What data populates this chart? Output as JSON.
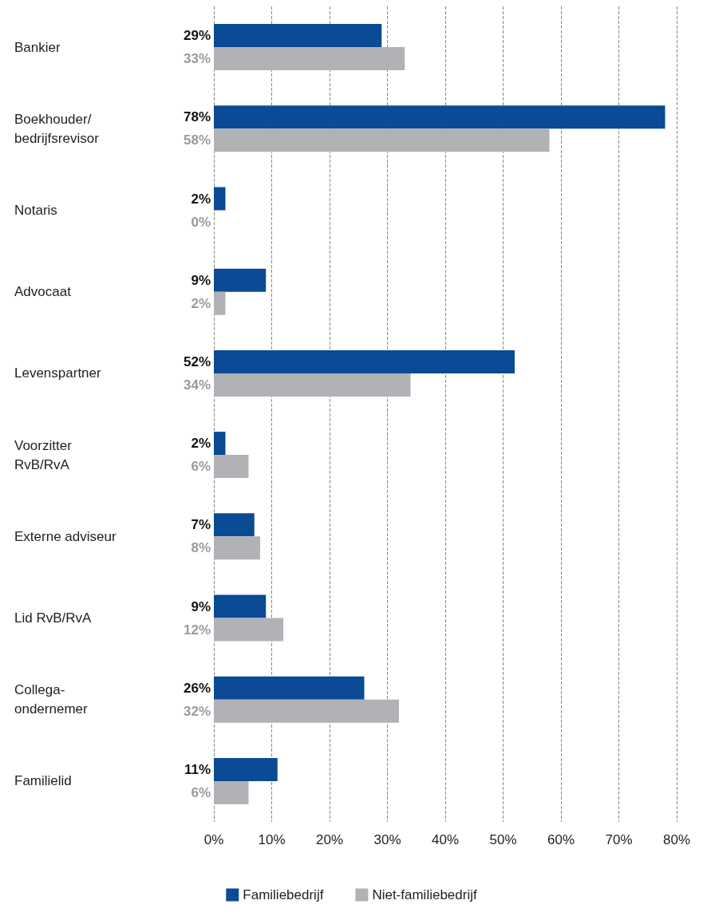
{
  "chart_data": {
    "type": "bar",
    "orientation": "horizontal",
    "categories": [
      "Bankier",
      "Boekhouder/\nbedrijfsrevisor",
      "Notaris",
      "Advocaat",
      "Levenspartner",
      "Voorzitter\nRvB/RvA",
      "Externe adviseur",
      "Lid RvB/RvA",
      "Collega-\nondernemer",
      "Familielid"
    ],
    "series": [
      {
        "name": "Familiebedrijf",
        "color": "#0b4a94",
        "values": [
          29,
          78,
          2,
          9,
          52,
          2,
          7,
          9,
          26,
          11
        ],
        "value_labels": [
          "29%",
          "78%",
          "2%",
          "9%",
          "52%",
          "2%",
          "7%",
          "9%",
          "26%",
          "11%"
        ]
      },
      {
        "name": "Niet-familiebedrijf",
        "color": "#b1b2b6",
        "values": [
          33,
          58,
          0,
          2,
          34,
          6,
          8,
          12,
          32,
          6
        ],
        "value_labels": [
          "33%",
          "58%",
          "0%",
          "2%",
          "34%",
          "6%",
          "8%",
          "12%",
          "32%",
          "6%"
        ]
      }
    ],
    "xlim": [
      0,
      80
    ],
    "xticks": [
      {
        "value": 0,
        "label": "0%"
      },
      {
        "value": 10,
        "label": "10%"
      },
      {
        "value": 20,
        "label": "20%"
      },
      {
        "value": 30,
        "label": "30%"
      },
      {
        "value": 40,
        "label": "40%"
      },
      {
        "value": 50,
        "label": "50%"
      },
      {
        "value": 60,
        "label": "60%"
      },
      {
        "value": 70,
        "label": "70%"
      },
      {
        "value": 80,
        "label": "80%"
      }
    ],
    "grid": "x",
    "legend": "bottom"
  }
}
